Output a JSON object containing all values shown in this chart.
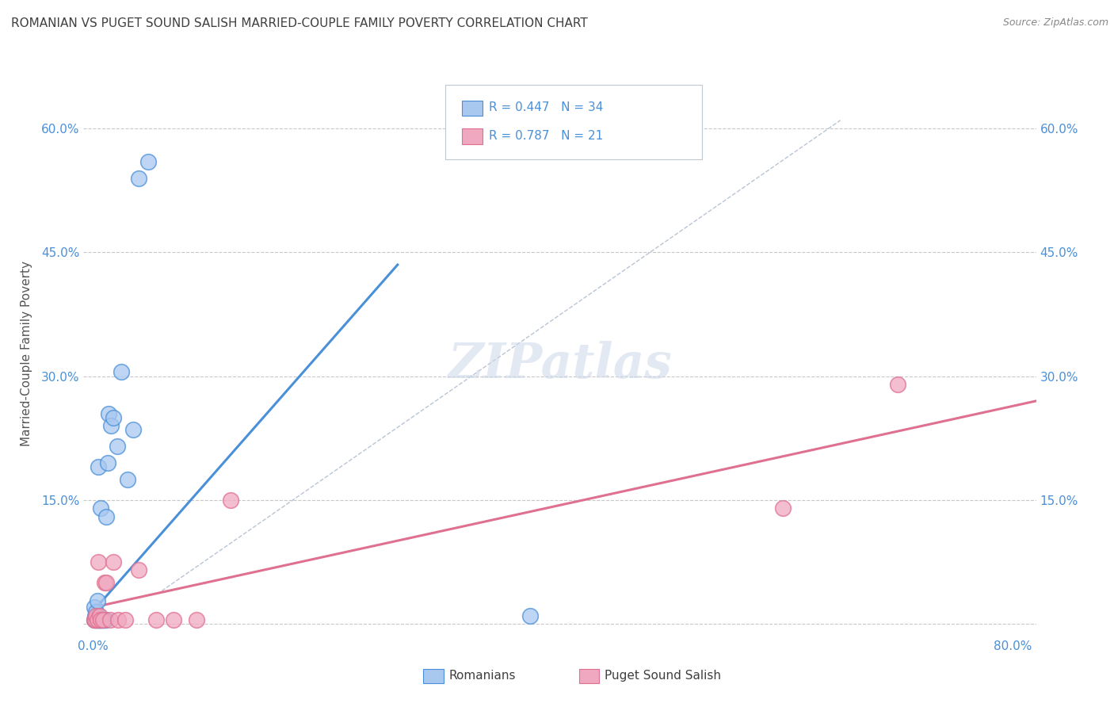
{
  "title": "ROMANIAN VS PUGET SOUND SALISH MARRIED-COUPLE FAMILY POVERTY CORRELATION CHART",
  "source": "Source: ZipAtlas.com",
  "ylabel": "Married-Couple Family Poverty",
  "xlim": [
    -0.008,
    0.82
  ],
  "ylim": [
    -0.015,
    0.67
  ],
  "xticks": [
    0.0,
    0.2,
    0.4,
    0.6,
    0.8
  ],
  "xtick_labels": [
    "0.0%",
    "",
    "",
    "",
    "80.0%"
  ],
  "yticks": [
    0.0,
    0.15,
    0.3,
    0.45,
    0.6
  ],
  "ytick_labels": [
    "",
    "15.0%",
    "30.0%",
    "45.0%",
    "60.0%"
  ],
  "right_ytick_labels": [
    "",
    "15.0%",
    "30.0%",
    "45.0%",
    "60.0%"
  ],
  "romanians_x": [
    0.001,
    0.001,
    0.002,
    0.003,
    0.003,
    0.003,
    0.004,
    0.004,
    0.004,
    0.005,
    0.005,
    0.005,
    0.006,
    0.006,
    0.006,
    0.007,
    0.007,
    0.008,
    0.008,
    0.009,
    0.01,
    0.011,
    0.012,
    0.013,
    0.014,
    0.016,
    0.018,
    0.021,
    0.025,
    0.03,
    0.035,
    0.04,
    0.048,
    0.38
  ],
  "romanians_y": [
    0.005,
    0.02,
    0.01,
    0.005,
    0.015,
    0.005,
    0.028,
    0.005,
    0.005,
    0.01,
    0.19,
    0.005,
    0.005,
    0.005,
    0.005,
    0.005,
    0.14,
    0.005,
    0.005,
    0.005,
    0.005,
    0.005,
    0.13,
    0.195,
    0.255,
    0.24,
    0.25,
    0.215,
    0.305,
    0.175,
    0.235,
    0.54,
    0.56,
    0.01
  ],
  "salish_x": [
    0.001,
    0.002,
    0.003,
    0.004,
    0.005,
    0.006,
    0.007,
    0.009,
    0.01,
    0.012,
    0.015,
    0.018,
    0.022,
    0.028,
    0.04,
    0.055,
    0.07,
    0.09,
    0.12,
    0.6,
    0.7
  ],
  "salish_y": [
    0.005,
    0.005,
    0.01,
    0.005,
    0.075,
    0.01,
    0.005,
    0.005,
    0.05,
    0.05,
    0.005,
    0.075,
    0.005,
    0.005,
    0.065,
    0.005,
    0.005,
    0.005,
    0.15,
    0.14,
    0.29
  ],
  "romanian_line_x": [
    0.0,
    0.265
  ],
  "romanian_line_y": [
    0.015,
    0.435
  ],
  "salish_line_x": [
    0.0,
    0.82
  ],
  "salish_line_y": [
    0.02,
    0.27
  ],
  "diag_line_x": [
    0.06,
    0.65
  ],
  "diag_line_y": [
    0.04,
    0.61
  ],
  "blue_color": "#4a90d9",
  "blue_fill": "#a8c8f0",
  "pink_color": "#e07090",
  "pink_fill": "#f0a8c0",
  "background_color": "#ffffff",
  "grid_color": "#c8c8c8",
  "title_color": "#404040",
  "tick_color": "#4a90d9"
}
